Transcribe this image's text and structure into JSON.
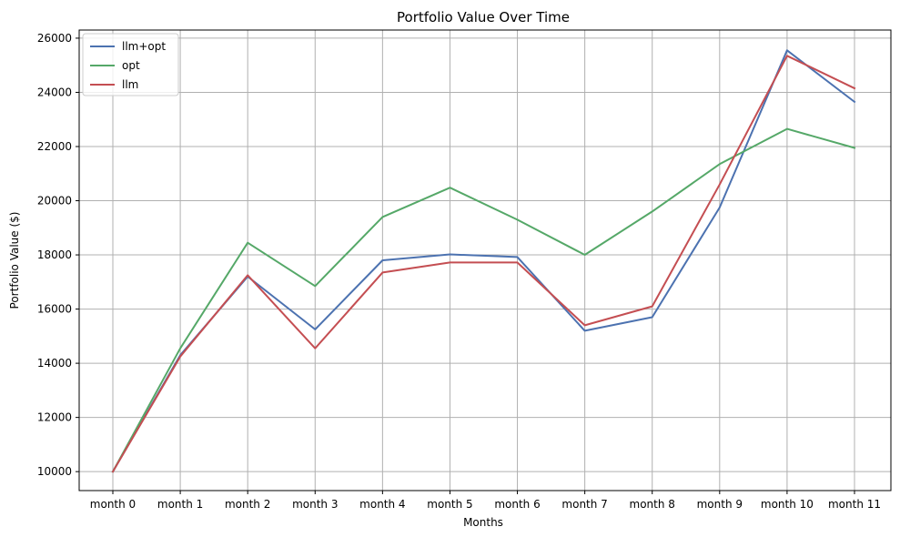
{
  "chart_data": {
    "type": "line",
    "title": "Portfolio Value Over Time",
    "xlabel": "Months",
    "ylabel": "Portfolio Value ($)",
    "categories": [
      "month 0",
      "month 1",
      "month 2",
      "month 3",
      "month 4",
      "month 5",
      "month 6",
      "month 7",
      "month 8",
      "month 9",
      "month 10",
      "month 11"
    ],
    "ylim": [
      9300,
      26300
    ],
    "yticks": [
      10000,
      12000,
      14000,
      16000,
      18000,
      20000,
      22000,
      24000,
      26000
    ],
    "grid": true,
    "legend_position": "top-left",
    "series": [
      {
        "name": "llm+opt",
        "color": "#4c72b0",
        "values": [
          10000,
          14300,
          17200,
          15250,
          17800,
          18020,
          17920,
          15200,
          15700,
          19750,
          25550,
          23650
        ]
      },
      {
        "name": "opt",
        "color": "#55a868",
        "values": [
          10000,
          14550,
          18450,
          16850,
          19400,
          20480,
          19300,
          18000,
          19600,
          21350,
          22650,
          21950
        ]
      },
      {
        "name": "llm",
        "color": "#c44e52",
        "values": [
          10000,
          14250,
          17250,
          14550,
          17350,
          17720,
          17720,
          15400,
          16100,
          20600,
          25350,
          24150
        ]
      }
    ]
  }
}
